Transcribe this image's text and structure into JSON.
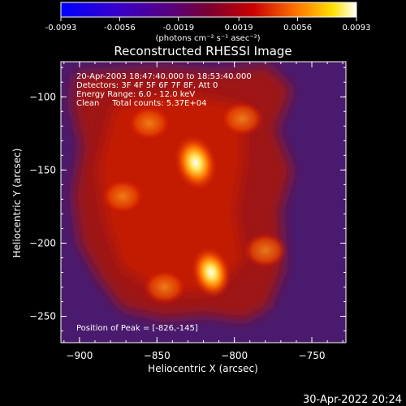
{
  "chart_data": {
    "type": "heatmap",
    "title": "Reconstructed RHESSI Image",
    "xlabel": "Heliocentric X (arcsec)",
    "ylabel": "Heliocentric Y (arcsec)",
    "xlim": [
      -912,
      -728
    ],
    "ylim": [
      -268,
      -76
    ],
    "x_ticks": [
      -900,
      -850,
      -800,
      -750
    ],
    "x_tick_labels": [
      "−900",
      "−850",
      "−800",
      "−750"
    ],
    "y_ticks": [
      -100,
      -150,
      -200,
      -250
    ],
    "y_tick_labels": [
      "−100",
      "−150",
      "−200",
      "−250"
    ],
    "colorbar": {
      "range": [
        -0.0093,
        0.0093
      ],
      "ticks": [
        -0.0093,
        -0.0056,
        -0.0019,
        0.0019,
        0.0056,
        0.0093
      ],
      "tick_labels": [
        "-0.0093",
        "-0.0056",
        "-0.0019",
        "0.0019",
        "0.0056",
        "0.0093"
      ],
      "unit_label": "(photons cm⁻² s⁻¹ asec⁻²)",
      "colormap": "rainbow-heat",
      "colors": [
        "#0000ff",
        "#5a0078",
        "#7a0032",
        "#c80000",
        "#ff7800",
        "#ffffff"
      ]
    },
    "sources": [
      {
        "x": -825,
        "y": -145,
        "peak": 0.0093,
        "label": "peak"
      },
      {
        "x": -815,
        "y": -220,
        "peak": 0.0072
      },
      {
        "x": -872,
        "y": -168,
        "peak": 0.0035
      },
      {
        "x": -855,
        "y": -118,
        "peak": 0.0033
      },
      {
        "x": -795,
        "y": -115,
        "peak": 0.0028
      },
      {
        "x": -780,
        "y": -205,
        "peak": 0.0028
      },
      {
        "x": -845,
        "y": -230,
        "peak": 0.003
      }
    ],
    "annotations": [
      "20-Apr-2003 18:47:40.000 to 18:53:40.000",
      "Detectors: 3F 4F 5F 6F 7F 8F, Att 0",
      "Energy Range: 6.0 - 12.0 keV",
      "Clean     Total counts: 5.37E+04"
    ],
    "peak_label": "Position of Peak = [-826,-145]"
  },
  "footer": {
    "timestamp": "30-Apr-2022 20:24"
  }
}
